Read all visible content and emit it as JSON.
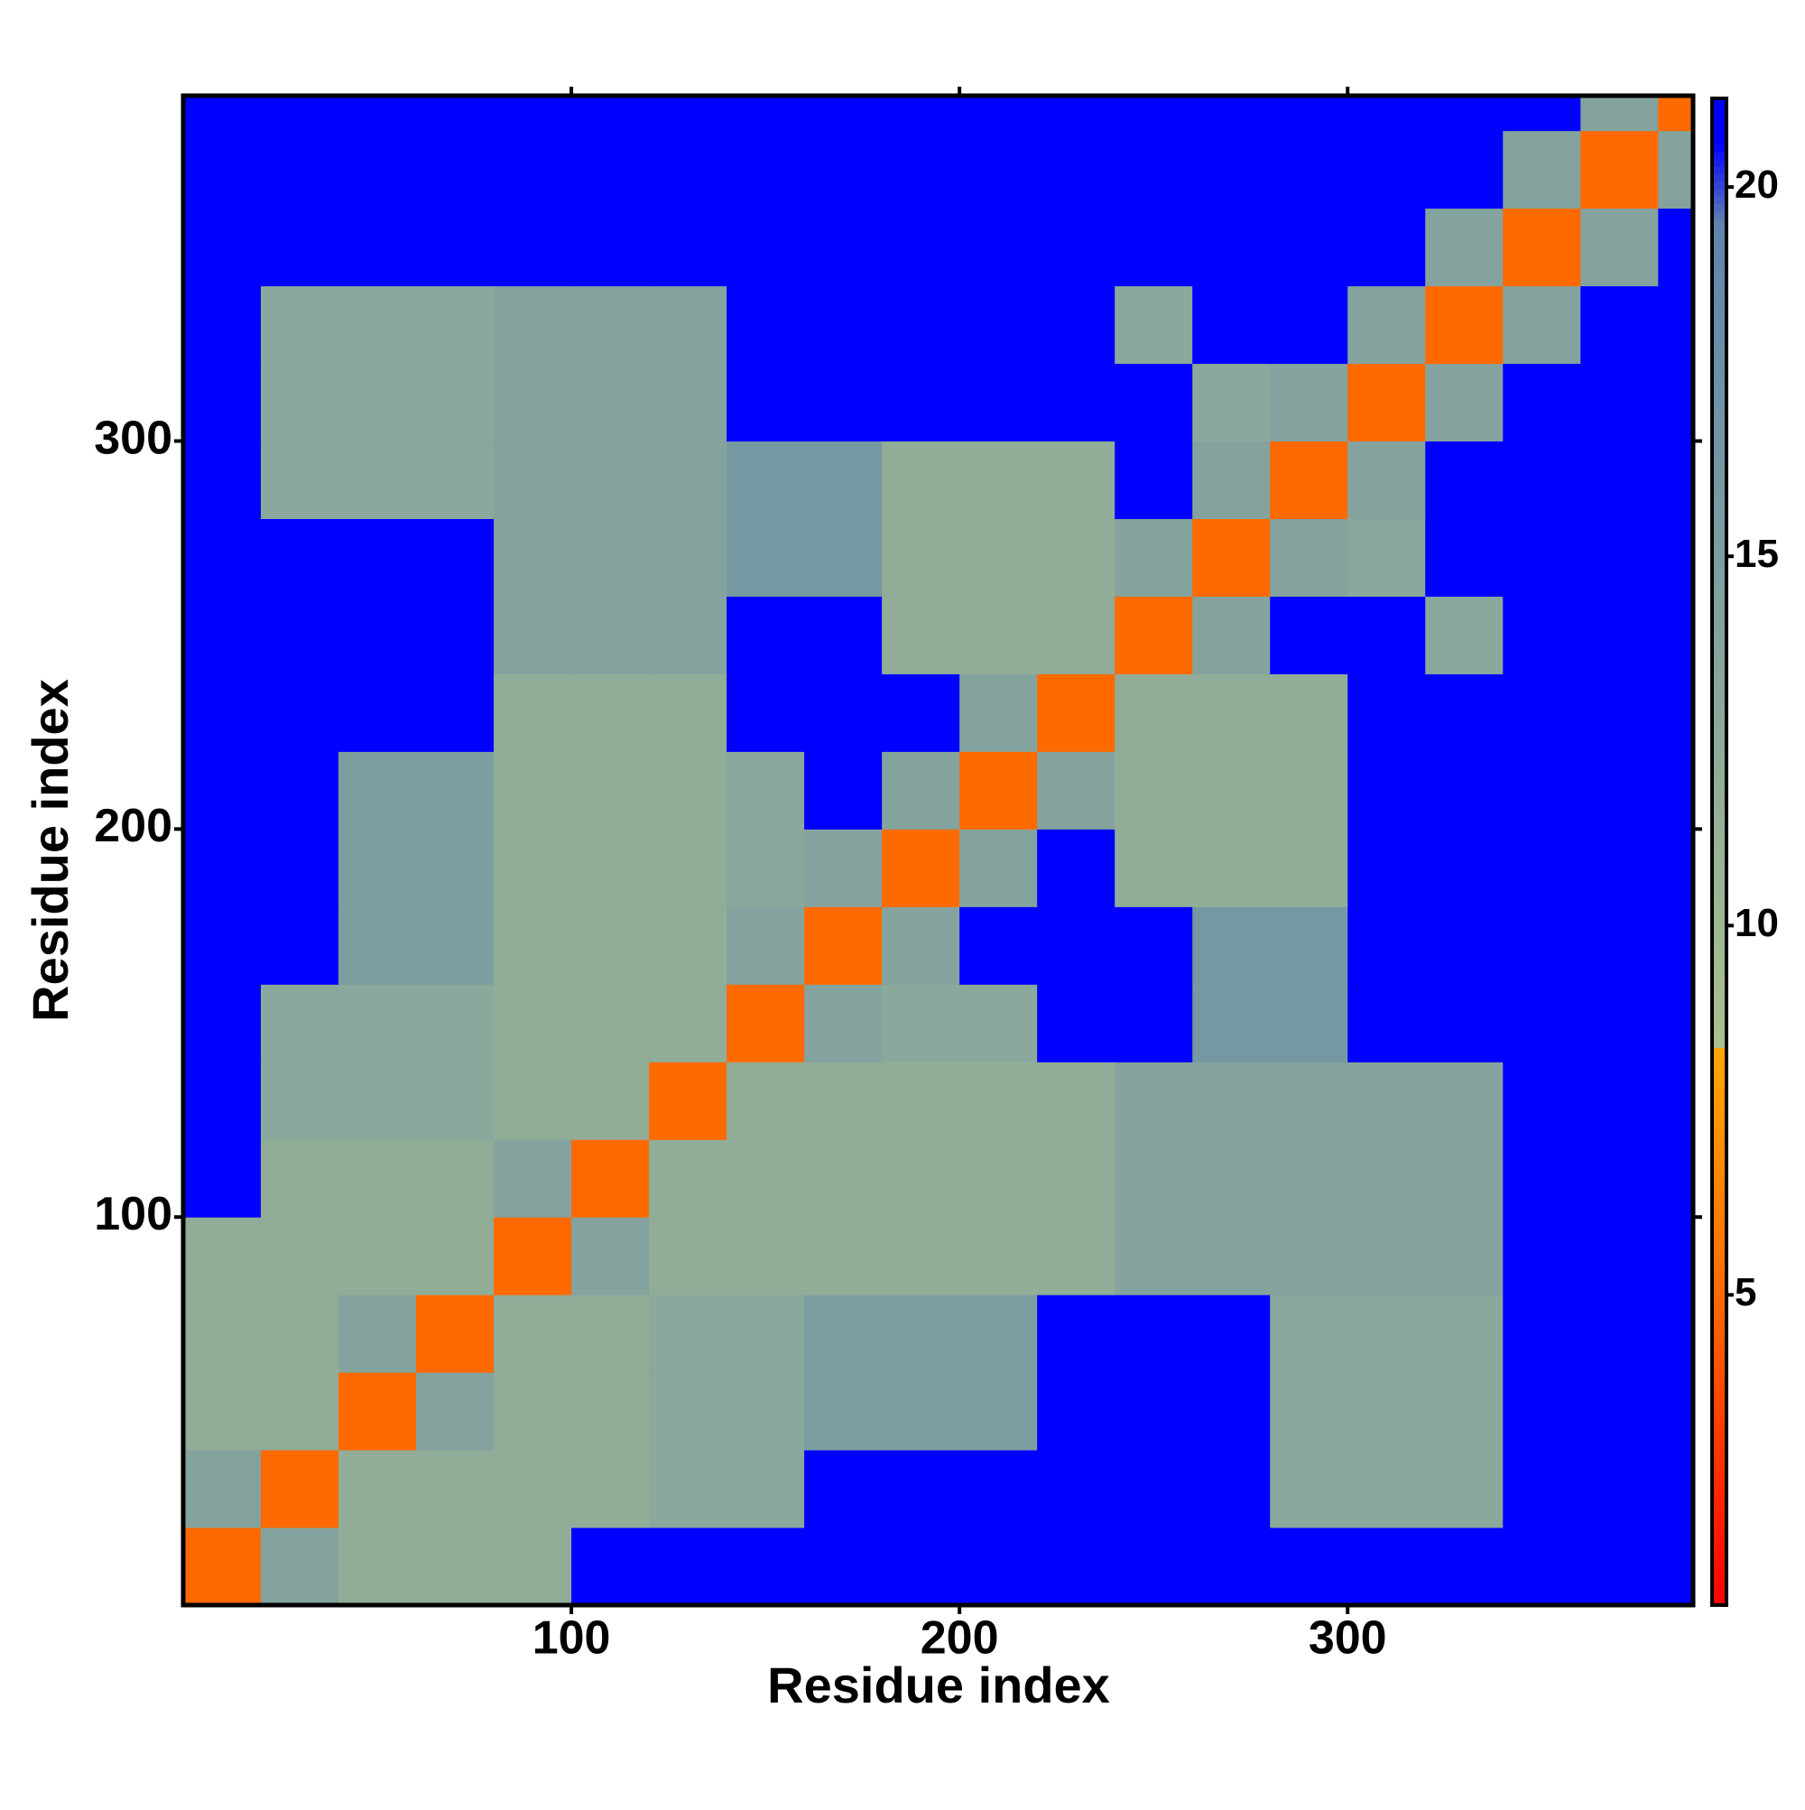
{
  "chart_data": {
    "type": "heatmap",
    "x_label": "Residue index",
    "y_label": "Residue index",
    "xlim": [
      0,
      389
    ],
    "ylim": [
      0,
      389
    ],
    "xticks": [
      100,
      200,
      300
    ],
    "yticks": [
      100,
      200,
      300
    ],
    "xbins": [
      0,
      20,
      40,
      60,
      80,
      100,
      120,
      140,
      160,
      180,
      200,
      220,
      240,
      260,
      280,
      300,
      320,
      340,
      360,
      380,
      389
    ],
    "ybins": [
      0,
      20,
      40,
      60,
      80,
      100,
      120,
      140,
      160,
      180,
      200,
      220,
      240,
      260,
      280,
      300,
      320,
      340,
      360,
      380,
      389
    ],
    "z": [
      [
        5,
        14,
        12,
        12,
        12,
        21,
        21,
        21,
        21,
        21,
        21,
        21,
        21,
        21,
        21,
        21,
        21,
        21,
        21,
        21
      ],
      [
        14,
        5,
        12,
        12,
        12,
        12,
        13,
        13,
        21,
        21,
        21,
        21,
        21,
        21,
        13,
        13,
        13,
        21,
        21,
        21
      ],
      [
        12,
        12,
        5,
        14,
        12,
        12,
        13,
        13,
        15,
        15,
        15,
        21,
        21,
        21,
        13,
        13,
        13,
        21,
        21,
        21
      ],
      [
        12,
        12,
        14,
        5,
        12,
        12,
        13,
        13,
        15,
        15,
        15,
        21,
        21,
        21,
        13,
        13,
        13,
        21,
        21,
        21
      ],
      [
        12,
        12,
        12,
        12,
        5,
        14,
        12,
        12,
        12,
        12,
        12,
        12,
        14,
        14,
        14,
        14,
        14,
        21,
        21,
        21
      ],
      [
        21,
        12,
        12,
        12,
        14,
        5,
        12,
        12,
        12,
        12,
        12,
        12,
        14,
        14,
        14,
        14,
        14,
        21,
        21,
        21
      ],
      [
        21,
        13,
        13,
        13,
        12,
        12,
        5,
        12,
        12,
        12,
        12,
        12,
        14,
        14,
        14,
        14,
        14,
        21,
        21,
        21
      ],
      [
        21,
        13,
        13,
        13,
        12,
        12,
        12,
        5,
        14,
        13,
        13,
        21,
        21,
        16,
        16,
        21,
        21,
        21,
        21,
        21
      ],
      [
        21,
        21,
        15,
        15,
        12,
        12,
        12,
        14,
        5,
        14,
        21,
        21,
        21,
        16,
        16,
        21,
        21,
        21,
        21,
        21
      ],
      [
        21,
        21,
        15,
        15,
        12,
        12,
        12,
        13,
        14,
        5,
        14,
        21,
        12,
        12,
        12,
        21,
        21,
        21,
        21,
        21
      ],
      [
        21,
        21,
        15,
        15,
        12,
        12,
        12,
        13,
        21,
        14,
        5,
        14,
        12,
        12,
        12,
        21,
        21,
        21,
        21,
        21
      ],
      [
        21,
        21,
        21,
        21,
        12,
        12,
        12,
        21,
        21,
        21,
        14,
        5,
        12,
        12,
        12,
        21,
        21,
        21,
        21,
        21
      ],
      [
        21,
        21,
        21,
        21,
        14,
        14,
        14,
        21,
        21,
        12,
        12,
        12,
        5,
        14,
        21,
        21,
        13,
        21,
        21,
        21
      ],
      [
        21,
        21,
        21,
        21,
        14,
        14,
        14,
        16,
        16,
        12,
        12,
        12,
        14,
        5,
        14,
        13,
        21,
        21,
        21,
        21
      ],
      [
        21,
        13,
        13,
        13,
        14,
        14,
        14,
        16,
        16,
        12,
        12,
        12,
        21,
        14,
        5,
        14,
        21,
        21,
        21,
        21
      ],
      [
        21,
        13,
        13,
        13,
        14,
        14,
        14,
        21,
        21,
        21,
        21,
        21,
        21,
        13,
        14,
        5,
        14,
        21,
        21,
        21
      ],
      [
        21,
        13,
        13,
        13,
        14,
        14,
        14,
        21,
        21,
        21,
        21,
        21,
        13,
        21,
        21,
        14,
        5,
        14,
        21,
        21
      ],
      [
        21,
        21,
        21,
        21,
        21,
        21,
        21,
        21,
        21,
        21,
        21,
        21,
        21,
        21,
        21,
        21,
        14,
        5,
        14,
        21
      ],
      [
        21,
        21,
        21,
        21,
        21,
        21,
        21,
        21,
        21,
        21,
        21,
        21,
        21,
        21,
        21,
        21,
        21,
        14,
        5,
        14
      ],
      [
        21,
        21,
        21,
        21,
        21,
        21,
        21,
        21,
        21,
        21,
        21,
        21,
        21,
        21,
        21,
        21,
        21,
        21,
        14,
        5
      ]
    ],
    "colorscale": [
      [
        0.8,
        "#ff0000"
      ],
      [
        5,
        "#ff6a00"
      ],
      [
        8.3,
        "#ffa500"
      ],
      [
        8.4,
        "#a9c08e"
      ],
      [
        19.5,
        "#5f86ad"
      ],
      [
        20.6,
        "#0000ff"
      ]
    ],
    "clim": [
      0.8,
      21.2
    ],
    "cticks": [
      5,
      10,
      15,
      20
    ]
  }
}
